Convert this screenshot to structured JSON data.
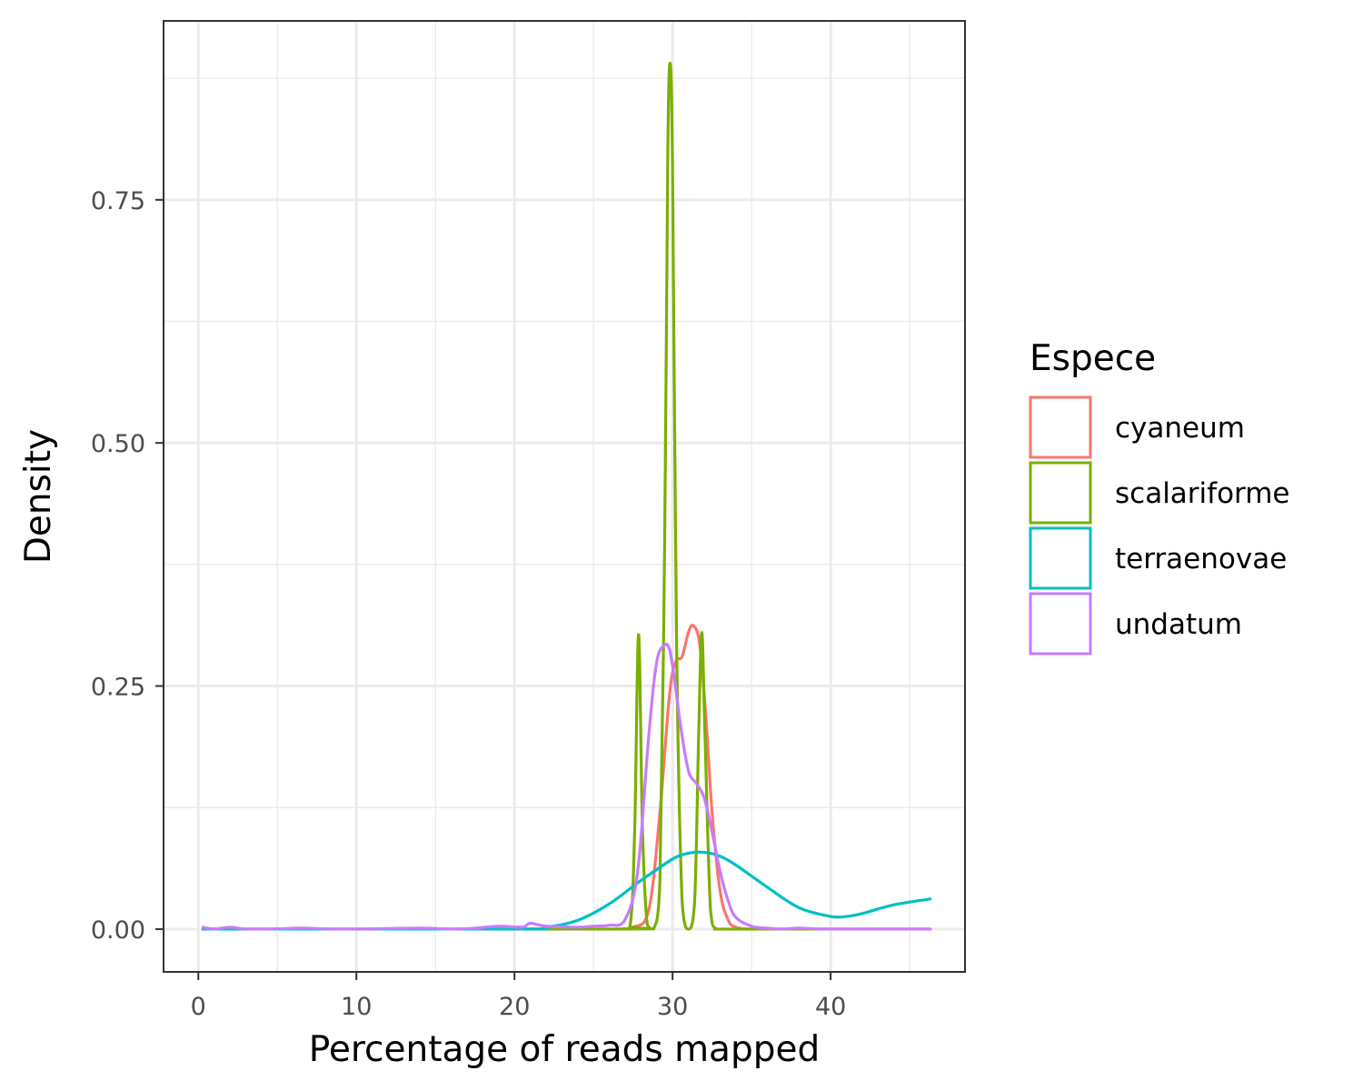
{
  "chart_data": {
    "type": "line",
    "subtype": "density",
    "title": "",
    "xlabel": "Percentage of reads mapped",
    "ylabel": "Density",
    "xlim": [
      -2.2,
      48.5
    ],
    "ylim": [
      -0.044,
      0.934
    ],
    "x_ticks": [
      0,
      10,
      20,
      30,
      40
    ],
    "x_tick_labels": [
      "0",
      "10",
      "20",
      "30",
      "40"
    ],
    "y_ticks": [
      0,
      0.25,
      0.5,
      0.75
    ],
    "y_tick_labels": [
      "0.00",
      "0.25",
      "0.50",
      "0.75"
    ],
    "x_minor_ticks": [
      5,
      15,
      25,
      35,
      45
    ],
    "y_minor_ticks": [
      0.125,
      0.375,
      0.625,
      0.875
    ],
    "grid": true,
    "theme": "bw",
    "legend": {
      "title": "Espece",
      "position": "right"
    },
    "series": [
      {
        "name": "cyaneum",
        "color": "#F8766D",
        "x": [
          0.3,
          20,
          26,
          27.5,
          28.5,
          29.2,
          29.8,
          30.2,
          30.6,
          31.0,
          31.3,
          31.7,
          32.1,
          32.5,
          33.0,
          33.5,
          34.0,
          35.0,
          37,
          40,
          46.3
        ],
        "y": [
          0,
          0,
          0,
          0.002,
          0.02,
          0.12,
          0.24,
          0.275,
          0.28,
          0.305,
          0.312,
          0.295,
          0.22,
          0.12,
          0.04,
          0.01,
          0.002,
          0,
          0,
          0,
          0
        ]
      },
      {
        "name": "scalariforme",
        "color": "#7CAE00",
        "x": [
          0.3,
          26.5,
          27.3,
          27.6,
          27.85,
          28.1,
          28.4,
          28.8,
          29.2,
          29.5,
          29.7,
          29.85,
          30.0,
          30.25,
          30.6,
          31.0,
          31.4,
          31.65,
          31.85,
          32.05,
          32.4,
          32.8,
          34,
          46.3
        ],
        "y": [
          0,
          0,
          0.003,
          0.1,
          0.303,
          0.1,
          0.005,
          0.0,
          0.05,
          0.4,
          0.8,
          0.89,
          0.78,
          0.3,
          0.03,
          0.0,
          0.03,
          0.2,
          0.305,
          0.2,
          0.02,
          0.0,
          0,
          0
        ]
      },
      {
        "name": "terraenovae",
        "color": "#00BFC4",
        "x": [
          0.3,
          20,
          22,
          24,
          26,
          28,
          30,
          31,
          32,
          33,
          34,
          36,
          38,
          40,
          41,
          42,
          44,
          46.3
        ],
        "y": [
          0,
          0,
          0.002,
          0.009,
          0.026,
          0.05,
          0.072,
          0.078,
          0.079,
          0.075,
          0.066,
          0.043,
          0.022,
          0.013,
          0.013,
          0.016,
          0.025,
          0.031
        ]
      },
      {
        "name": "undatum",
        "color": "#C77CFF",
        "x": [
          0.3,
          1,
          2,
          3,
          4.5,
          6.5,
          8.5,
          10,
          14,
          16,
          17.5,
          19,
          20.5,
          21,
          22,
          24,
          25,
          26,
          27,
          27.8,
          28.5,
          29.0,
          29.5,
          29.8,
          30.1,
          30.5,
          31.0,
          31.5,
          32.0,
          32.5,
          33.0,
          33.5,
          34.0,
          35.0,
          36,
          37,
          38,
          40,
          46.3
        ],
        "y": [
          0.002,
          0.0,
          0.002,
          0.0,
          0.0,
          0.001,
          0.0,
          0.0,
          0.001,
          0.0,
          0.001,
          0.003,
          0.002,
          0.006,
          0.003,
          0.002,
          0.003,
          0.004,
          0.01,
          0.06,
          0.2,
          0.275,
          0.292,
          0.288,
          0.26,
          0.21,
          0.163,
          0.15,
          0.135,
          0.1,
          0.06,
          0.03,
          0.012,
          0.003,
          0.001,
          0.0,
          0.001,
          0.0,
          0.0
        ]
      }
    ]
  }
}
